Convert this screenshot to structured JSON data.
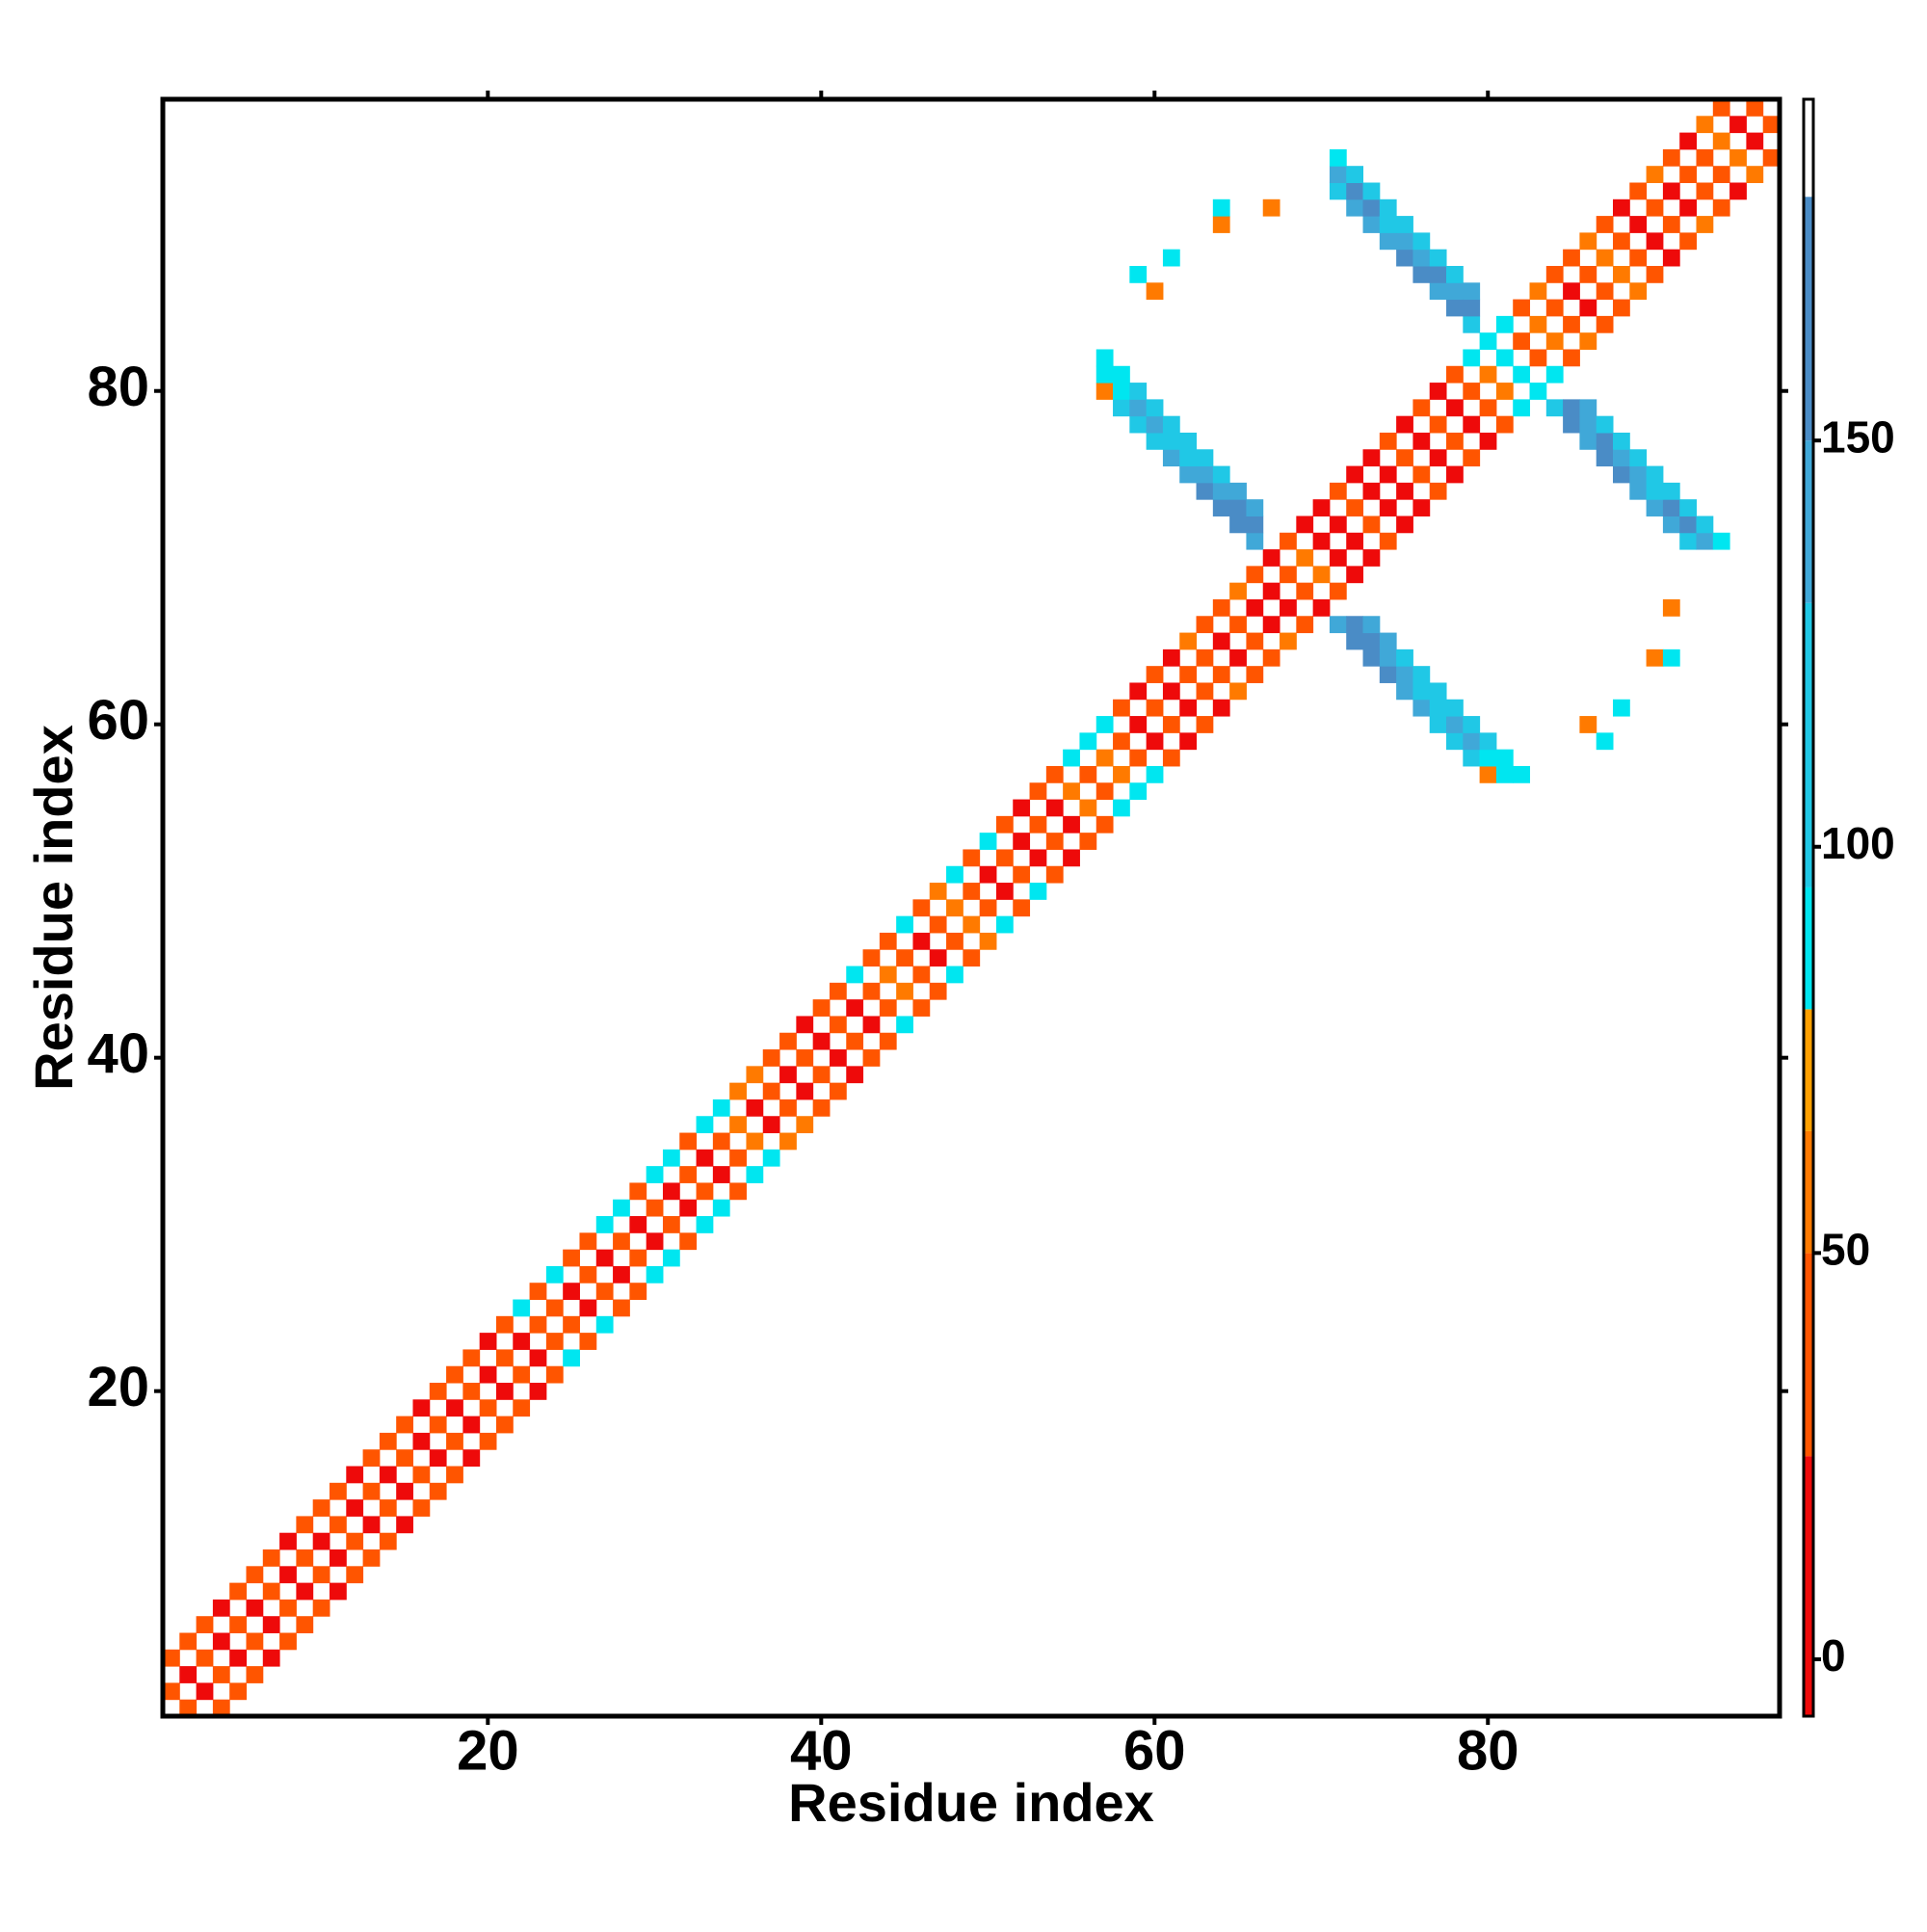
{
  "chart_data": {
    "type": "heatmap",
    "x_label": "Residue index",
    "y_label": "Residue index",
    "xlim": [
      0.5,
      97.5
    ],
    "ylim": [
      0.5,
      97.5
    ],
    "xticks": [
      20,
      40,
      60,
      80
    ],
    "yticks": [
      20,
      40,
      60,
      80
    ],
    "symmetric": true,
    "zlim": [
      -7,
      192
    ],
    "zticks": [
      0,
      50,
      100,
      150
    ],
    "colorscale": [
      {
        "value": -7,
        "color": "#ee0a0a"
      },
      {
        "value": 25,
        "color": "#ff5500"
      },
      {
        "value": 50,
        "color": "#ff7a00"
      },
      {
        "value": 65,
        "color": "#ffa000"
      },
      {
        "value": 80,
        "color": "#00e6f0"
      },
      {
        "value": 95,
        "color": "#20c8e6"
      },
      {
        "value": 130,
        "color": "#40a8d8"
      },
      {
        "value": 150,
        "color": "#4a8cc6"
      },
      {
        "value": 180,
        "color": "#ffffff"
      }
    ],
    "cells": [
      {
        "x": [
          1,
          2,
          3,
          4,
          5,
          6,
          7,
          8,
          9,
          10,
          11,
          12,
          13,
          14,
          15,
          16,
          17,
          18,
          19,
          20,
          21,
          22,
          23,
          24,
          25,
          26,
          27,
          28,
          29,
          30,
          31,
          32,
          33,
          34,
          35,
          36,
          37,
          38,
          39,
          40,
          41,
          42,
          43,
          44,
          45,
          46,
          47,
          48,
          49,
          50,
          51,
          52,
          53,
          54,
          55,
          56,
          57,
          58,
          59,
          60,
          61,
          62,
          63,
          64,
          65,
          66,
          67,
          68,
          69,
          70,
          71,
          72,
          73,
          74,
          75,
          76,
          77,
          78,
          79,
          80,
          81,
          82,
          83,
          84,
          85,
          86,
          87,
          88,
          89,
          90,
          91,
          92,
          93,
          94,
          95,
          96
        ],
        "y": [
          2,
          3,
          4,
          5,
          6,
          7,
          8,
          9,
          10,
          11,
          12,
          13,
          14,
          15,
          16,
          17,
          18,
          19,
          20,
          21,
          22,
          23,
          24,
          25,
          26,
          27,
          28,
          29,
          30,
          31,
          32,
          33,
          34,
          35,
          36,
          37,
          38,
          39,
          40,
          41,
          42,
          43,
          44,
          45,
          46,
          47,
          48,
          49,
          50,
          51,
          52,
          53,
          54,
          55,
          56,
          57,
          58,
          59,
          60,
          61,
          62,
          63,
          64,
          65,
          66,
          67,
          68,
          69,
          70,
          71,
          72,
          73,
          74,
          75,
          76,
          77,
          78,
          79,
          80,
          81,
          82,
          83,
          84,
          85,
          86,
          87,
          88,
          89,
          90,
          91,
          92,
          93,
          94,
          95,
          96,
          97
        ],
        "values": [
          35,
          10,
          35,
          10,
          35,
          10,
          35,
          10,
          35,
          10,
          35,
          10,
          35,
          10,
          35,
          10,
          35,
          10,
          35,
          10,
          35,
          10,
          35,
          35,
          10,
          35,
          10,
          35,
          10,
          35,
          10,
          35,
          10,
          35,
          60,
          10,
          35,
          10,
          35,
          10,
          35,
          10,
          35,
          60,
          35,
          10,
          35,
          60,
          35,
          10,
          35,
          10,
          35,
          10,
          60,
          35,
          60,
          35,
          10,
          35,
          10,
          35,
          35,
          10,
          35,
          10,
          10,
          35,
          60,
          10,
          10,
          35,
          10,
          10,
          35,
          10,
          35,
          10,
          35,
          60,
          90,
          35,
          60,
          35,
          10,
          35,
          60,
          35,
          10,
          35,
          10,
          35,
          35,
          60,
          10,
          35
        ]
      },
      {
        "x": [
          1,
          2,
          3,
          4,
          5,
          6,
          7,
          8,
          9,
          10,
          11,
          12,
          13,
          14,
          15,
          16,
          17,
          18,
          19,
          20,
          21,
          22,
          23,
          24,
          25,
          26,
          27,
          28,
          29,
          30,
          31,
          32,
          33,
          34,
          35,
          36,
          37,
          38,
          39,
          40,
          41,
          42,
          43,
          44,
          45,
          46,
          47,
          48,
          49,
          50,
          51,
          52,
          53,
          54,
          55,
          56,
          57,
          58,
          59,
          60,
          61,
          62,
          63,
          64,
          65,
          66,
          67,
          68,
          69,
          70,
          71,
          72,
          73,
          74,
          75,
          76,
          77,
          78,
          79,
          80,
          81,
          82,
          83,
          84,
          85,
          86,
          87,
          88,
          89,
          90,
          91,
          92,
          93,
          94
        ],
        "y": [
          4,
          5,
          6,
          7,
          8,
          9,
          10,
          11,
          12,
          13,
          14,
          15,
          16,
          17,
          18,
          19,
          20,
          21,
          22,
          23,
          24,
          25,
          26,
          27,
          28,
          29,
          30,
          31,
          32,
          33,
          34,
          35,
          36,
          37,
          38,
          39,
          40,
          41,
          42,
          43,
          44,
          45,
          46,
          47,
          48,
          49,
          50,
          51,
          52,
          53,
          54,
          55,
          56,
          57,
          58,
          59,
          60,
          61,
          62,
          63,
          64,
          65,
          66,
          67,
          68,
          69,
          70,
          71,
          72,
          73,
          74,
          75,
          76,
          77,
          78,
          79,
          80,
          81,
          82,
          83,
          84,
          85,
          86,
          87,
          88,
          89,
          90,
          91,
          92,
          93,
          94,
          95,
          96,
          97
        ],
        "values": [
          35,
          35,
          35,
          10,
          35,
          35,
          35,
          10,
          35,
          35,
          35,
          10,
          35,
          35,
          35,
          10,
          35,
          35,
          35,
          10,
          35,
          90,
          35,
          90,
          35,
          35,
          90,
          90,
          35,
          90,
          90,
          35,
          90,
          90,
          60,
          60,
          35,
          35,
          10,
          35,
          35,
          90,
          35,
          35,
          90,
          35,
          60,
          90,
          35,
          90,
          35,
          10,
          35,
          35,
          90,
          90,
          90,
          35,
          10,
          35,
          10,
          60,
          35,
          35,
          60,
          35,
          10,
          35,
          10,
          10,
          35,
          10,
          10,
          35,
          10,
          35,
          10,
          35,
          90,
          90,
          90,
          35,
          60,
          35,
          35,
          60,
          35,
          10,
          35,
          60,
          35,
          10,
          60,
          35
        ]
      },
      {
        "x": [
          57,
          57,
          57,
          58,
          58,
          58,
          59,
          59,
          59,
          60,
          60,
          60,
          61,
          61,
          61,
          62,
          62,
          62,
          63,
          63,
          63,
          64,
          64,
          64,
          65,
          65,
          65,
          66,
          66,
          66
        ],
        "y": [
          80,
          81,
          82,
          79,
          80,
          81,
          78,
          79,
          80,
          77,
          78,
          79,
          76,
          77,
          78,
          75,
          76,
          77,
          74,
          75,
          76,
          73,
          74,
          75,
          72,
          73,
          74,
          71,
          72,
          73
        ],
        "values": [
          60,
          90,
          90,
          120,
          90,
          90,
          120,
          140,
          120,
          120,
          140,
          120,
          140,
          120,
          120,
          140,
          120,
          120,
          160,
          140,
          120,
          160,
          140,
          120,
          160,
          160,
          140,
          140,
          160,
          140
        ]
      },
      {
        "x": [
          71,
          71,
          71,
          72,
          72,
          72,
          73,
          73,
          73,
          74,
          74,
          74,
          75,
          75,
          75,
          76,
          76,
          76,
          77,
          77,
          77,
          78,
          78,
          78,
          79,
          79,
          79
        ],
        "y": [
          92,
          93,
          94,
          91,
          92,
          93,
          90,
          91,
          92,
          89,
          90,
          91,
          88,
          89,
          90,
          87,
          88,
          89,
          86,
          87,
          88,
          85,
          86,
          87,
          84,
          85,
          86
        ],
        "values": [
          120,
          140,
          90,
          140,
          160,
          120,
          140,
          160,
          120,
          140,
          120,
          120,
          160,
          140,
          120,
          160,
          140,
          120,
          140,
          160,
          120,
          160,
          140,
          120,
          120,
          160,
          140
        ]
      },
      {
        "x": [
          59,
          60,
          61,
          64,
          64,
          67
        ],
        "y": [
          87,
          86,
          88,
          90,
          91,
          91
        ],
        "values": [
          90,
          60,
          90,
          60,
          90,
          60
        ]
      }
    ]
  }
}
